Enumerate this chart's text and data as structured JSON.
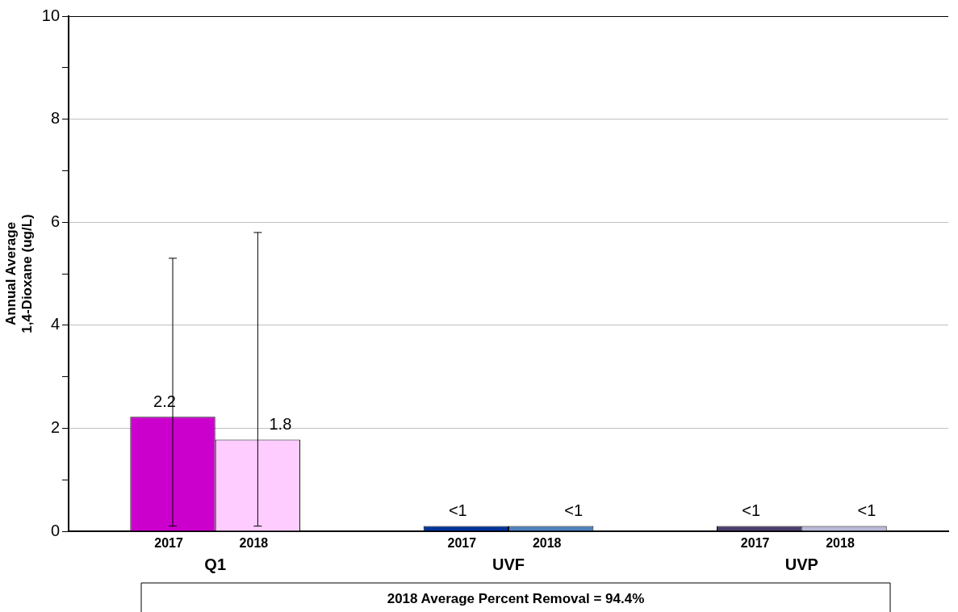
{
  "chart_data": {
    "type": "bar",
    "ylabel": "Annual Average 1,4-Dioxane (ug/L)",
    "categories": [
      "Q1",
      "UVF",
      "UVP"
    ],
    "series": [
      {
        "name": "2017",
        "colors": [
          "#cc00cc",
          "#003399",
          "#4b3d6b"
        ],
        "values": [
          2.22,
          0.1,
          0.1
        ],
        "errors": [
          [
            0.1,
            5.3
          ],
          null,
          null
        ],
        "value_labels": [
          "2.2",
          "<1",
          "<1"
        ]
      },
      {
        "name": "2018",
        "colors": [
          "#ffccff",
          "#4f81bd",
          "#b8b8d8"
        ],
        "values": [
          1.78,
          0.1,
          0.1
        ],
        "errors": [
          [
            0.1,
            5.8
          ],
          null,
          null
        ],
        "value_labels": [
          "1.8",
          "<1",
          "<1"
        ]
      }
    ],
    "ylim": [
      0,
      10
    ],
    "yticks": [
      0,
      {
        "value": 1,
        "label": null
      },
      2,
      {
        "value": 3,
        "label": null
      },
      4,
      {
        "value": 5,
        "label": null
      },
      6,
      {
        "value": 7,
        "label": null
      },
      8,
      {
        "value": 9,
        "label": null
      },
      10
    ],
    "grid": "y",
    "legend": false,
    "annotations": [
      "2018 Average Percent Removal = 94.4%"
    ]
  }
}
